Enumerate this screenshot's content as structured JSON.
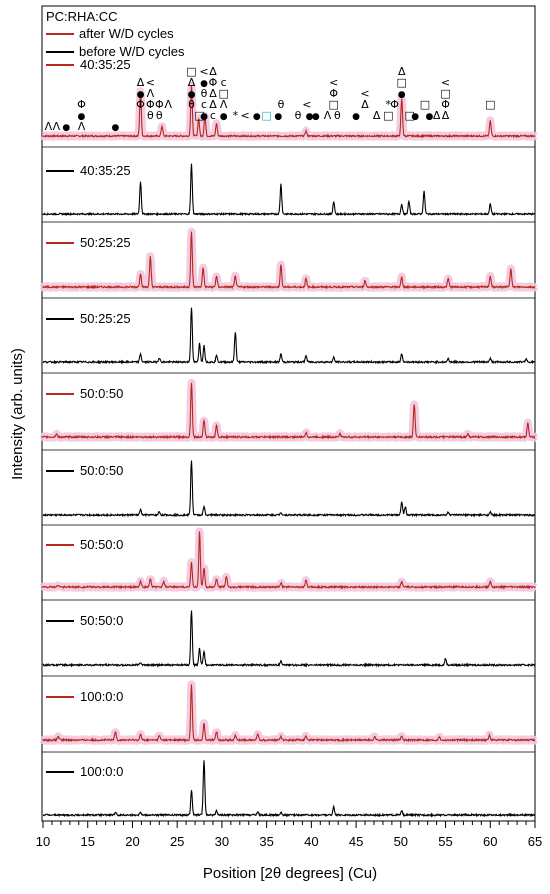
{
  "chart_data": {
    "type": "line",
    "xlabel": "Position [2θ degrees] (Cu)",
    "ylabel": "Intensity (arb. units)",
    "xlim": [
      10,
      65
    ],
    "xticks": [
      10,
      15,
      20,
      25,
      30,
      35,
      40,
      45,
      50,
      55,
      60,
      65
    ],
    "legend": {
      "title": "PC:RHA:CC",
      "entries": [
        {
          "label": "after W/D cycles",
          "color": "#b5281c"
        },
        {
          "label": "before W/D cycles",
          "color": "#000000"
        }
      ]
    },
    "colors": {
      "after": "#b5281c",
      "before": "#000000",
      "halo": "#f2c6de"
    },
    "series": [
      {
        "name": "40:35:25",
        "condition": "after",
        "peaks": [
          [
            20.9,
            0.9
          ],
          [
            23.3,
            0.2
          ],
          [
            26.6,
            1.0
          ],
          [
            27.4,
            0.35
          ],
          [
            28.1,
            0.4
          ],
          [
            29.4,
            0.25
          ],
          [
            39.4,
            0.1
          ],
          [
            50.1,
            0.75
          ],
          [
            60.0,
            0.3
          ]
        ]
      },
      {
        "name": "40:35:25",
        "condition": "before",
        "peaks": [
          [
            20.9,
            0.65
          ],
          [
            26.6,
            1.0
          ],
          [
            36.6,
            0.6
          ],
          [
            42.5,
            0.25
          ],
          [
            50.1,
            0.2
          ],
          [
            50.9,
            0.25
          ],
          [
            52.6,
            0.45
          ],
          [
            60.0,
            0.2
          ]
        ]
      },
      {
        "name": "50:25:25",
        "condition": "after",
        "peaks": [
          [
            20.9,
            0.25
          ],
          [
            22.0,
            0.55
          ],
          [
            26.6,
            1.0
          ],
          [
            27.9,
            0.35
          ],
          [
            29.4,
            0.2
          ],
          [
            31.5,
            0.2
          ],
          [
            36.6,
            0.4
          ],
          [
            39.4,
            0.15
          ],
          [
            46.0,
            0.12
          ],
          [
            50.1,
            0.18
          ],
          [
            55.3,
            0.15
          ],
          [
            60.0,
            0.2
          ],
          [
            62.3,
            0.35
          ]
        ]
      },
      {
        "name": "50:25:25",
        "condition": "before",
        "peaks": [
          [
            20.9,
            0.15
          ],
          [
            23.0,
            0.08
          ],
          [
            26.6,
            1.0
          ],
          [
            27.5,
            0.35
          ],
          [
            28.0,
            0.3
          ],
          [
            29.4,
            0.12
          ],
          [
            31.5,
            0.55
          ],
          [
            36.6,
            0.15
          ],
          [
            39.4,
            0.12
          ],
          [
            42.5,
            0.08
          ],
          [
            50.1,
            0.15
          ],
          [
            55.3,
            0.06
          ],
          [
            60.0,
            0.06
          ],
          [
            64.0,
            0.06
          ]
        ]
      },
      {
        "name": "50:0:50",
        "condition": "after",
        "peaks": [
          [
            11.5,
            0.06
          ],
          [
            26.6,
            1.0
          ],
          [
            28.0,
            0.3
          ],
          [
            29.4,
            0.22
          ],
          [
            39.4,
            0.08
          ],
          [
            43.2,
            0.06
          ],
          [
            51.5,
            0.6
          ],
          [
            57.5,
            0.06
          ],
          [
            64.2,
            0.25
          ]
        ]
      },
      {
        "name": "50:0:50",
        "condition": "before",
        "peaks": [
          [
            20.9,
            0.1
          ],
          [
            23.0,
            0.06
          ],
          [
            26.6,
            1.0
          ],
          [
            28.0,
            0.15
          ],
          [
            36.6,
            0.05
          ],
          [
            50.1,
            0.25
          ],
          [
            50.5,
            0.15
          ],
          [
            55.3,
            0.05
          ],
          [
            60.0,
            0.05
          ]
        ]
      },
      {
        "name": "50:50:0",
        "condition": "after",
        "peaks": [
          [
            11.7,
            0.04
          ],
          [
            20.9,
            0.1
          ],
          [
            22.0,
            0.15
          ],
          [
            23.5,
            0.1
          ],
          [
            26.6,
            0.45
          ],
          [
            27.5,
            1.0
          ],
          [
            28.0,
            0.35
          ],
          [
            29.4,
            0.15
          ],
          [
            30.5,
            0.2
          ],
          [
            36.6,
            0.08
          ],
          [
            39.4,
            0.12
          ],
          [
            50.1,
            0.1
          ],
          [
            60.0,
            0.1
          ]
        ]
      },
      {
        "name": "50:50:0",
        "condition": "before",
        "peaks": [
          [
            20.9,
            0.05
          ],
          [
            26.6,
            1.0
          ],
          [
            27.5,
            0.3
          ],
          [
            28.0,
            0.25
          ],
          [
            36.6,
            0.08
          ],
          [
            55.0,
            0.12
          ]
        ]
      },
      {
        "name": "100:0:0",
        "condition": "after",
        "peaks": [
          [
            11.7,
            0.07
          ],
          [
            18.1,
            0.15
          ],
          [
            20.9,
            0.1
          ],
          [
            23.0,
            0.08
          ],
          [
            26.6,
            1.0
          ],
          [
            28.0,
            0.3
          ],
          [
            29.4,
            0.15
          ],
          [
            31.5,
            0.08
          ],
          [
            34.0,
            0.12
          ],
          [
            36.6,
            0.06
          ],
          [
            39.4,
            0.08
          ],
          [
            47.1,
            0.06
          ],
          [
            50.1,
            0.08
          ],
          [
            54.3,
            0.06
          ],
          [
            59.9,
            0.08
          ]
        ]
      },
      {
        "name": "100:0:0",
        "condition": "before",
        "peaks": [
          [
            18.1,
            0.04
          ],
          [
            20.9,
            0.06
          ],
          [
            26.6,
            0.45
          ],
          [
            28.0,
            1.0
          ],
          [
            29.4,
            0.08
          ],
          [
            34.0,
            0.06
          ],
          [
            36.6,
            0.05
          ],
          [
            42.5,
            0.15
          ],
          [
            50.1,
            0.07
          ]
        ]
      }
    ],
    "phase_annotations": [
      {
        "symbol": "Λ",
        "x": 10.6,
        "row": 0
      },
      {
        "symbol": "Λ",
        "x": 11.5,
        "row": 0
      },
      {
        "symbol": "●",
        "x": 12.6,
        "row": 0
      },
      {
        "symbol": "Φ",
        "x": 14.3,
        "row": 2
      },
      {
        "symbol": "●",
        "x": 14.3,
        "row": 1
      },
      {
        "symbol": "Λ",
        "x": 14.3,
        "row": 0
      },
      {
        "symbol": "●",
        "x": 18.1,
        "row": 0
      },
      {
        "symbol": "Δ",
        "x": 20.9,
        "row": 4
      },
      {
        "symbol": "●",
        "x": 20.9,
        "row": 3
      },
      {
        "symbol": "Φ",
        "x": 20.9,
        "row": 2
      },
      {
        "symbol": "<",
        "x": 22.0,
        "row": 4
      },
      {
        "symbol": "Λ",
        "x": 22.0,
        "row": 3
      },
      {
        "symbol": "Φ",
        "x": 22.0,
        "row": 2
      },
      {
        "symbol": "θ",
        "x": 22.0,
        "row": 1
      },
      {
        "symbol": "Φ",
        "x": 23.0,
        "row": 2
      },
      {
        "symbol": "θ",
        "x": 23.0,
        "row": 1
      },
      {
        "symbol": "Λ",
        "x": 24.0,
        "row": 2
      },
      {
        "symbol": "□",
        "x": 26.6,
        "row": 5
      },
      {
        "symbol": "Δ",
        "x": 26.6,
        "row": 4
      },
      {
        "symbol": "●",
        "x": 26.6,
        "row": 3
      },
      {
        "symbol": "θ",
        "x": 26.6,
        "row": 2
      },
      {
        "symbol": "□",
        "x": 27.5,
        "row": 1
      },
      {
        "symbol": "<",
        "x": 28.0,
        "row": 5
      },
      {
        "symbol": "●",
        "x": 28.0,
        "row": 4
      },
      {
        "symbol": "θ",
        "x": 28.0,
        "row": 3
      },
      {
        "symbol": "c",
        "x": 28.0,
        "row": 2
      },
      {
        "symbol": "●",
        "x": 28.0,
        "row": 1
      },
      {
        "symbol": "Δ",
        "x": 29.0,
        "row": 5
      },
      {
        "symbol": "Φ",
        "x": 29.0,
        "row": 4
      },
      {
        "symbol": "Δ",
        "x": 29.0,
        "row": 3
      },
      {
        "symbol": "Δ",
        "x": 29.0,
        "row": 2
      },
      {
        "symbol": "c",
        "x": 29.0,
        "row": 1
      },
      {
        "symbol": "c",
        "x": 30.2,
        "row": 4
      },
      {
        "symbol": "□",
        "x": 30.2,
        "row": 3
      },
      {
        "symbol": "Λ",
        "x": 30.2,
        "row": 2
      },
      {
        "symbol": "●",
        "x": 30.2,
        "row": 1
      },
      {
        "symbol": "*",
        "x": 31.5,
        "row": 1
      },
      {
        "symbol": "<",
        "x": 32.6,
        "row": 1
      },
      {
        "symbol": "●",
        "x": 33.9,
        "row": 1
      },
      {
        "symbol": "□",
        "x": 35.0,
        "row": 1
      },
      {
        "symbol": "θ",
        "x": 36.6,
        "row": 2
      },
      {
        "symbol": "●",
        "x": 36.3,
        "row": 1
      },
      {
        "symbol": "θ",
        "x": 38.5,
        "row": 1
      },
      {
        "symbol": "<",
        "x": 39.5,
        "row": 2
      },
      {
        "symbol": "●",
        "x": 39.8,
        "row": 1
      },
      {
        "symbol": "●",
        "x": 40.5,
        "row": 1
      },
      {
        "symbol": "<",
        "x": 42.5,
        "row": 4
      },
      {
        "symbol": "Φ",
        "x": 42.5,
        "row": 3
      },
      {
        "symbol": "□",
        "x": 42.5,
        "row": 2
      },
      {
        "symbol": "θ",
        "x": 42.9,
        "row": 1
      },
      {
        "symbol": "Λ",
        "x": 41.8,
        "row": 1
      },
      {
        "symbol": "●",
        "x": 45.0,
        "row": 1
      },
      {
        "symbol": "<",
        "x": 46.0,
        "row": 3
      },
      {
        "symbol": "Δ",
        "x": 46.0,
        "row": 2
      },
      {
        "symbol": "Δ",
        "x": 47.3,
        "row": 1
      },
      {
        "symbol": "*",
        "x": 48.6,
        "row": 2
      },
      {
        "symbol": "□",
        "x": 48.6,
        "row": 1
      },
      {
        "symbol": "Φ",
        "x": 49.3,
        "row": 2
      },
      {
        "symbol": "Δ",
        "x": 50.1,
        "row": 5
      },
      {
        "symbol": "□",
        "x": 50.1,
        "row": 4
      },
      {
        "symbol": "●",
        "x": 50.1,
        "row": 3
      },
      {
        "symbol": "□",
        "x": 51.0,
        "row": 1
      },
      {
        "symbol": "●",
        "x": 51.6,
        "row": 1
      },
      {
        "symbol": "□",
        "x": 52.7,
        "row": 2
      },
      {
        "symbol": "●",
        "x": 53.2,
        "row": 1
      },
      {
        "symbol": "<",
        "x": 55.0,
        "row": 4
      },
      {
        "symbol": "□",
        "x": 55.0,
        "row": 3
      },
      {
        "symbol": "Φ",
        "x": 55.0,
        "row": 2
      },
      {
        "symbol": "Δ",
        "x": 54.0,
        "row": 1
      },
      {
        "symbol": "Δ",
        "x": 55.0,
        "row": 1
      },
      {
        "symbol": "□",
        "x": 60.0,
        "row": 2
      }
    ]
  }
}
